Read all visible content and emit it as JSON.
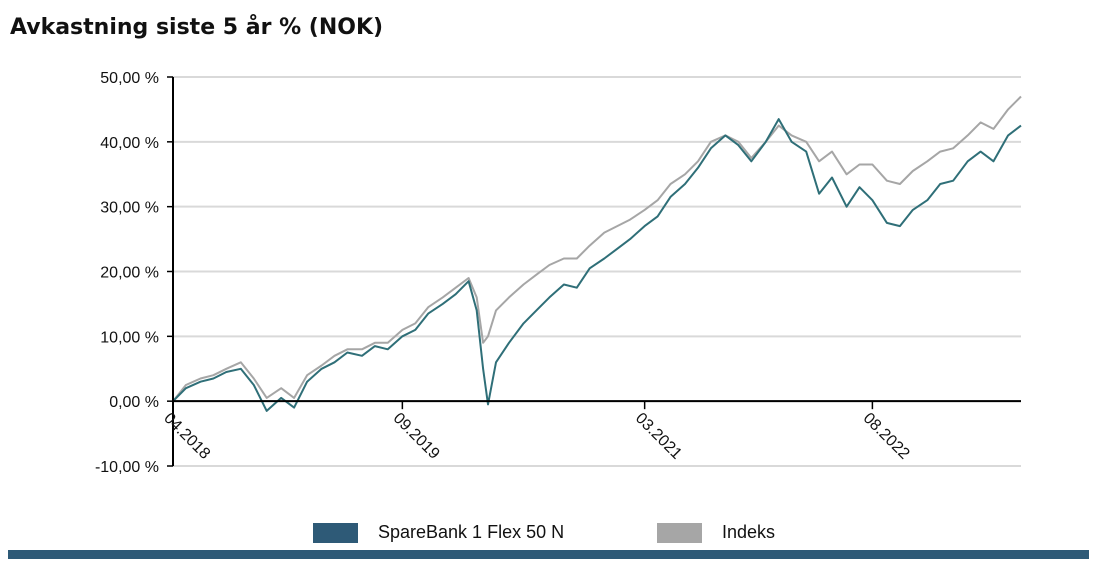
{
  "chart_data": {
    "type": "line",
    "title": "Avkastning siste 5 år % (NOK)",
    "xlabel": "",
    "ylabel": "",
    "ylim": [
      -10,
      50
    ],
    "yticks": [
      {
        "value": 50,
        "label": "50,00 %"
      },
      {
        "value": 40,
        "label": "40,00 %"
      },
      {
        "value": 30,
        "label": "30,00 %"
      },
      {
        "value": 20,
        "label": "20,00 %"
      },
      {
        "value": 10,
        "label": "10,00 %"
      },
      {
        "value": 0,
        "label": "0,00 %"
      },
      {
        "value": -10,
        "label": "-10,00 %"
      }
    ],
    "xlim": [
      2018.25,
      2023.5
    ],
    "xticks": [
      {
        "value": 2018.25,
        "label": "04.2018"
      },
      {
        "value": 2019.67,
        "label": "09.2019"
      },
      {
        "value": 2021.17,
        "label": "03.2021"
      },
      {
        "value": 2022.58,
        "label": "08.2022"
      }
    ],
    "grid": true,
    "legend_position": "bottom",
    "series": [
      {
        "name": "SpareBank 1 Flex 50 N",
        "color": "#2f6f78",
        "points": [
          [
            2018.25,
            0.0
          ],
          [
            2018.33,
            2.0
          ],
          [
            2018.42,
            3.0
          ],
          [
            2018.5,
            3.5
          ],
          [
            2018.58,
            4.5
          ],
          [
            2018.67,
            5.0
          ],
          [
            2018.75,
            2.5
          ],
          [
            2018.83,
            -1.5
          ],
          [
            2018.92,
            0.5
          ],
          [
            2019.0,
            -1.0
          ],
          [
            2019.08,
            3.0
          ],
          [
            2019.17,
            5.0
          ],
          [
            2019.25,
            6.0
          ],
          [
            2019.33,
            7.5
          ],
          [
            2019.42,
            7.0
          ],
          [
            2019.5,
            8.5
          ],
          [
            2019.58,
            8.0
          ],
          [
            2019.67,
            10.0
          ],
          [
            2019.75,
            11.0
          ],
          [
            2019.83,
            13.5
          ],
          [
            2019.92,
            15.0
          ],
          [
            2020.0,
            16.5
          ],
          [
            2020.08,
            18.5
          ],
          [
            2020.13,
            14.0
          ],
          [
            2020.17,
            5.0
          ],
          [
            2020.2,
            -0.5
          ],
          [
            2020.25,
            6.0
          ],
          [
            2020.33,
            9.0
          ],
          [
            2020.42,
            12.0
          ],
          [
            2020.5,
            14.0
          ],
          [
            2020.58,
            16.0
          ],
          [
            2020.67,
            18.0
          ],
          [
            2020.75,
            17.5
          ],
          [
            2020.83,
            20.5
          ],
          [
            2020.92,
            22.0
          ],
          [
            2021.0,
            23.5
          ],
          [
            2021.08,
            25.0
          ],
          [
            2021.17,
            27.0
          ],
          [
            2021.25,
            28.5
          ],
          [
            2021.33,
            31.5
          ],
          [
            2021.42,
            33.5
          ],
          [
            2021.5,
            36.0
          ],
          [
            2021.58,
            39.0
          ],
          [
            2021.67,
            41.0
          ],
          [
            2021.75,
            39.5
          ],
          [
            2021.83,
            37.0
          ],
          [
            2021.92,
            40.0
          ],
          [
            2022.0,
            43.5
          ],
          [
            2022.08,
            40.0
          ],
          [
            2022.17,
            38.5
          ],
          [
            2022.25,
            32.0
          ],
          [
            2022.33,
            34.5
          ],
          [
            2022.42,
            30.0
          ],
          [
            2022.5,
            33.0
          ],
          [
            2022.58,
            31.0
          ],
          [
            2022.67,
            27.5
          ],
          [
            2022.75,
            27.0
          ],
          [
            2022.83,
            29.5
          ],
          [
            2022.92,
            31.0
          ],
          [
            2023.0,
            33.5
          ],
          [
            2023.08,
            34.0
          ],
          [
            2023.17,
            37.0
          ],
          [
            2023.25,
            38.5
          ],
          [
            2023.33,
            37.0
          ],
          [
            2023.42,
            41.0
          ],
          [
            2023.5,
            42.5
          ]
        ]
      },
      {
        "name": "Indeks",
        "color": "#a6a6a6",
        "points": [
          [
            2018.25,
            0.0
          ],
          [
            2018.33,
            2.5
          ],
          [
            2018.42,
            3.5
          ],
          [
            2018.5,
            4.0
          ],
          [
            2018.58,
            5.0
          ],
          [
            2018.67,
            6.0
          ],
          [
            2018.75,
            3.5
          ],
          [
            2018.83,
            0.5
          ],
          [
            2018.92,
            2.0
          ],
          [
            2019.0,
            0.5
          ],
          [
            2019.08,
            4.0
          ],
          [
            2019.17,
            5.5
          ],
          [
            2019.25,
            7.0
          ],
          [
            2019.33,
            8.0
          ],
          [
            2019.42,
            8.0
          ],
          [
            2019.5,
            9.0
          ],
          [
            2019.58,
            9.0
          ],
          [
            2019.67,
            11.0
          ],
          [
            2019.75,
            12.0
          ],
          [
            2019.83,
            14.5
          ],
          [
            2019.92,
            16.0
          ],
          [
            2020.0,
            17.5
          ],
          [
            2020.08,
            19.0
          ],
          [
            2020.13,
            16.0
          ],
          [
            2020.17,
            9.0
          ],
          [
            2020.2,
            10.0
          ],
          [
            2020.25,
            14.0
          ],
          [
            2020.33,
            16.0
          ],
          [
            2020.42,
            18.0
          ],
          [
            2020.5,
            19.5
          ],
          [
            2020.58,
            21.0
          ],
          [
            2020.67,
            22.0
          ],
          [
            2020.75,
            22.0
          ],
          [
            2020.83,
            24.0
          ],
          [
            2020.92,
            26.0
          ],
          [
            2021.0,
            27.0
          ],
          [
            2021.08,
            28.0
          ],
          [
            2021.17,
            29.5
          ],
          [
            2021.25,
            31.0
          ],
          [
            2021.33,
            33.5
          ],
          [
            2021.42,
            35.0
          ],
          [
            2021.5,
            37.0
          ],
          [
            2021.58,
            40.0
          ],
          [
            2021.67,
            41.0
          ],
          [
            2021.75,
            40.0
          ],
          [
            2021.83,
            37.5
          ],
          [
            2021.92,
            40.0
          ],
          [
            2022.0,
            42.5
          ],
          [
            2022.08,
            41.0
          ],
          [
            2022.17,
            40.0
          ],
          [
            2022.25,
            37.0
          ],
          [
            2022.33,
            38.5
          ],
          [
            2022.42,
            35.0
          ],
          [
            2022.5,
            36.5
          ],
          [
            2022.58,
            36.5
          ],
          [
            2022.67,
            34.0
          ],
          [
            2022.75,
            33.5
          ],
          [
            2022.83,
            35.5
          ],
          [
            2022.92,
            37.0
          ],
          [
            2023.0,
            38.5
          ],
          [
            2023.08,
            39.0
          ],
          [
            2023.17,
            41.0
          ],
          [
            2023.25,
            43.0
          ],
          [
            2023.33,
            42.0
          ],
          [
            2023.42,
            45.0
          ],
          [
            2023.5,
            47.0
          ]
        ]
      }
    ]
  },
  "legend": {
    "items": [
      {
        "label": "SpareBank 1 Flex 50 N",
        "color": "#2e5a77"
      },
      {
        "label": "Indeks",
        "color": "#a6a6a6"
      }
    ]
  },
  "footer_bar_color": "#2e5a77"
}
